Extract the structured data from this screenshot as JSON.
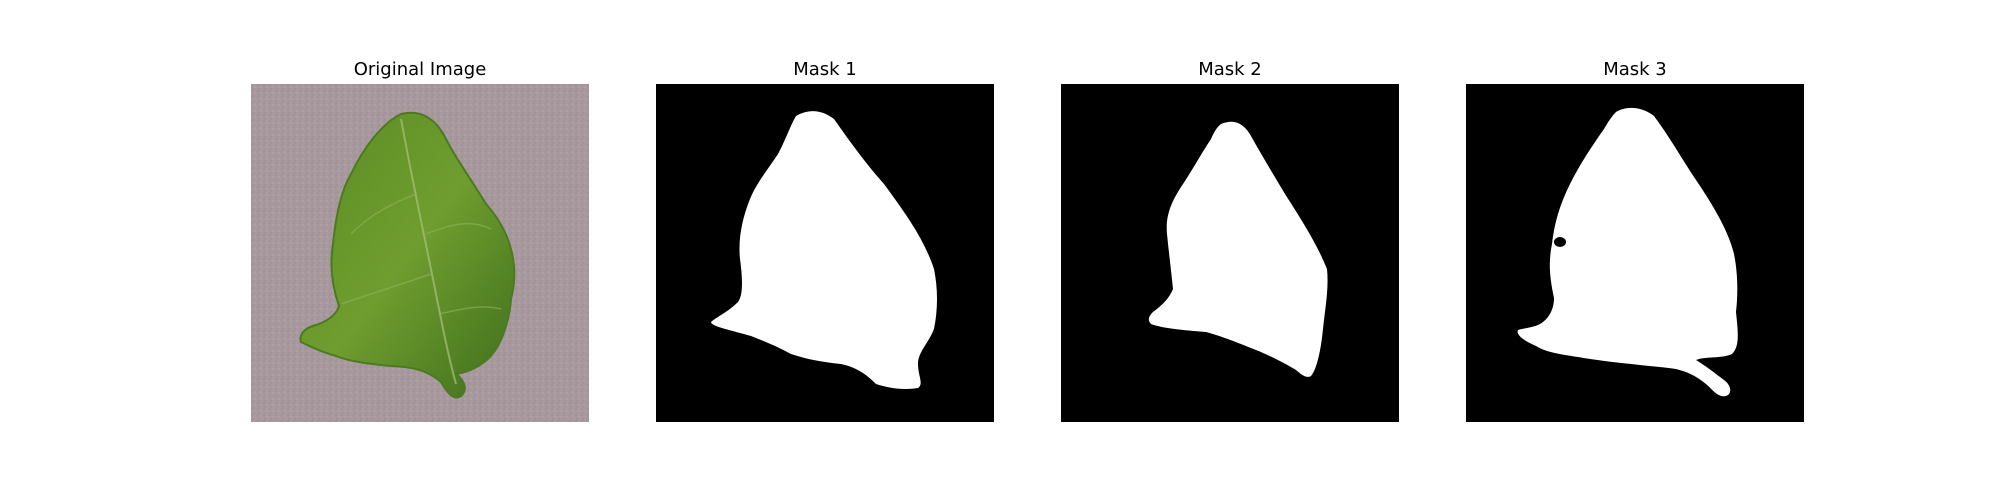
{
  "figure": {
    "panels": [
      {
        "title": "Original Image",
        "icon": "leaf-photo-icon"
      },
      {
        "title": "Mask 1",
        "icon": "mask-icon"
      },
      {
        "title": "Mask 2",
        "icon": "mask-icon"
      },
      {
        "title": "Mask 3",
        "icon": "mask-icon"
      }
    ]
  },
  "colors": {
    "background_ground": "#a8999f",
    "leaf_dark": "#3f6e1c",
    "leaf_light": "#6f9d2f",
    "mask_background": "#000000",
    "mask_foreground": "#ffffff"
  }
}
